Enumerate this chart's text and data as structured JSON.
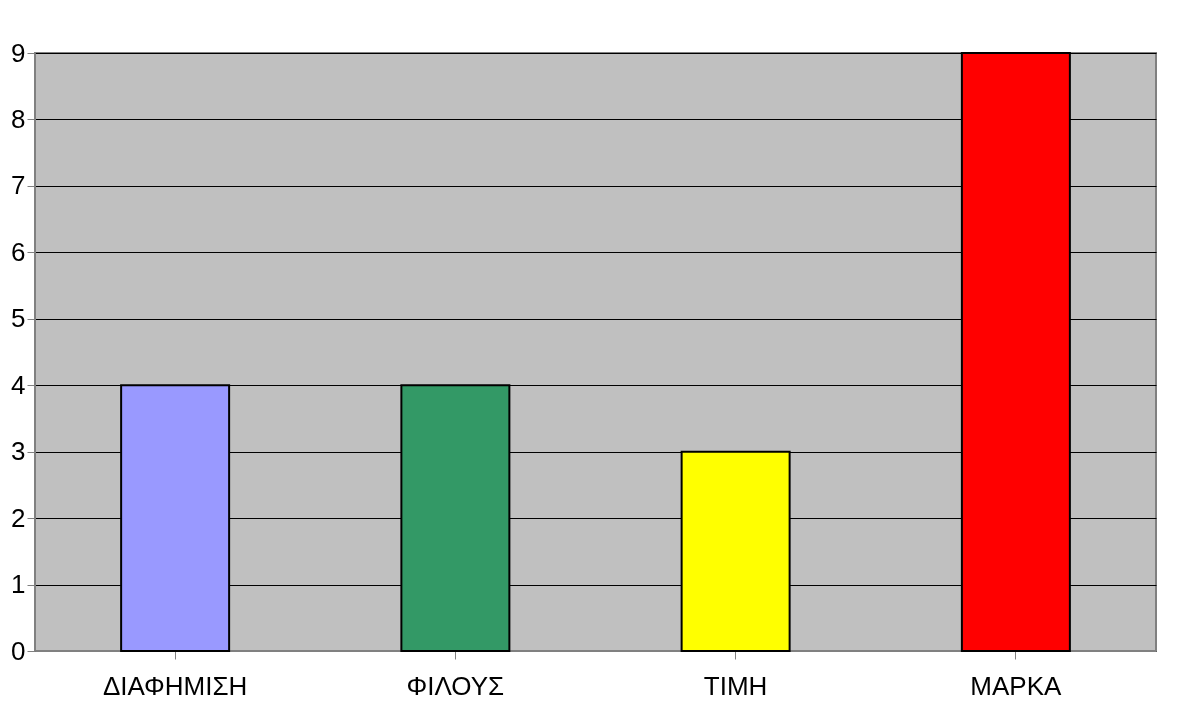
{
  "chart_data": {
    "type": "bar",
    "categories": [
      "ΔΙΑΦΗΜΙΣΗ",
      "ΦΙΛΟΥΣ",
      "ΤΙΜΗ",
      "ΜΑΡΚΑ"
    ],
    "values": [
      4,
      4,
      3,
      9
    ],
    "colors": [
      "#9999ff",
      "#339966",
      "#ffff00",
      "#ff0000"
    ],
    "ylim": [
      0,
      9
    ],
    "yticks": [
      0,
      1,
      2,
      3,
      4,
      5,
      6,
      7,
      8,
      9
    ],
    "grid": "y",
    "legend": false
  }
}
